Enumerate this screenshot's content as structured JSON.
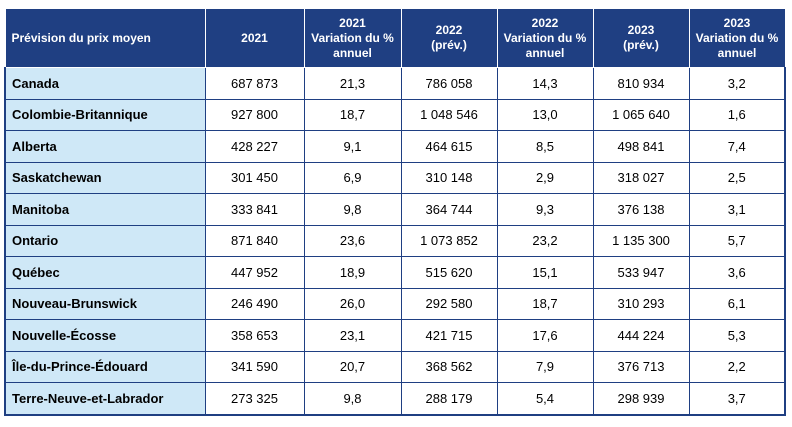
{
  "headers": [
    "Prévision du prix moyen",
    "2021",
    "2021\nVariation du %\nannuel",
    "2022\n(prév.)",
    "2022\nVariation du %\nannuel",
    "2023\n(prév.)",
    "2023\nVariation du %\nannuel"
  ],
  "rows": [
    [
      "Canada",
      "687 873",
      "21,3",
      "786 058",
      "14,3",
      "810 934",
      "3,2"
    ],
    [
      "Colombie-Britannique",
      "927 800",
      "18,7",
      "1 048 546",
      "13,0",
      "1 065 640",
      "1,6"
    ],
    [
      "Alberta",
      "428 227",
      "9,1",
      "464 615",
      "8,5",
      "498 841",
      "7,4"
    ],
    [
      "Saskatchewan",
      "301 450",
      "6,9",
      "310 148",
      "2,9",
      "318 027",
      "2,5"
    ],
    [
      "Manitoba",
      "333 841",
      "9,8",
      "364 744",
      "9,3",
      "376 138",
      "3,1"
    ],
    [
      "Ontario",
      "871 840",
      "23,6",
      "1 073 852",
      "23,2",
      "1 135 300",
      "5,7"
    ],
    [
      "Québec",
      "447 952",
      "18,9",
      "515 620",
      "15,1",
      "533 947",
      "3,6"
    ],
    [
      "Nouveau-Brunswick",
      "246 490",
      "26,0",
      "292 580",
      "18,7",
      "310 293",
      "6,1"
    ],
    [
      "Nouvelle-Écosse",
      "358 653",
      "23,1",
      "421 715",
      "17,6",
      "444 224",
      "5,3"
    ],
    [
      "Île-du-Prince-Édouard",
      "341 590",
      "20,7",
      "368 562",
      "7,9",
      "376 713",
      "2,2"
    ],
    [
      "Terre-Neuve-et-Labrador",
      "273 325",
      "9,8",
      "288 179",
      "5,4",
      "298 939",
      "3,7"
    ]
  ]
}
